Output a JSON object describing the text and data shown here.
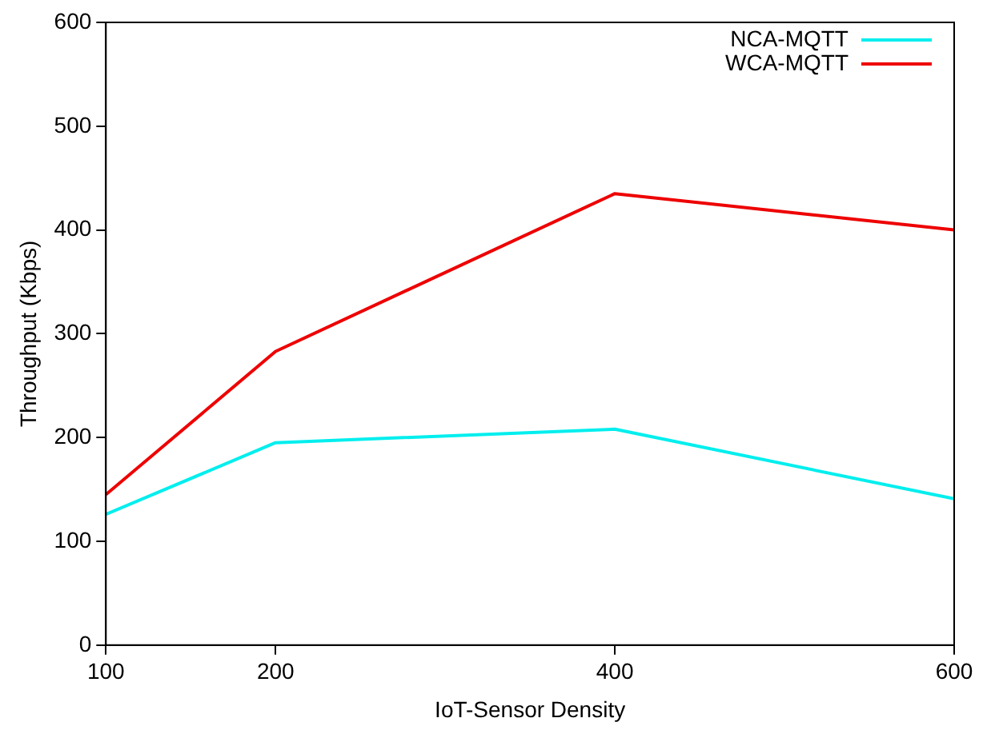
{
  "chart_data": {
    "type": "line",
    "xlabel": "IoT-Sensor Density",
    "ylabel": "Throughput (Kbps)",
    "x": [
      100,
      200,
      400,
      600
    ],
    "series": [
      {
        "name": "NCA-MQTT",
        "color": "#00eeee",
        "values": [
          126,
          195,
          208,
          141
        ]
      },
      {
        "name": "WCA-MQTT",
        "color": "#ee0000",
        "values": [
          145,
          283,
          435,
          400
        ]
      }
    ],
    "xlim": [
      100,
      600
    ],
    "xticks": [
      100,
      200,
      400,
      600
    ],
    "ylim": [
      0,
      600
    ],
    "yticks": [
      0,
      100,
      200,
      300,
      400,
      500,
      600
    ],
    "grid": false,
    "legend": "top right",
    "marker": "none",
    "line_style": "solid"
  }
}
